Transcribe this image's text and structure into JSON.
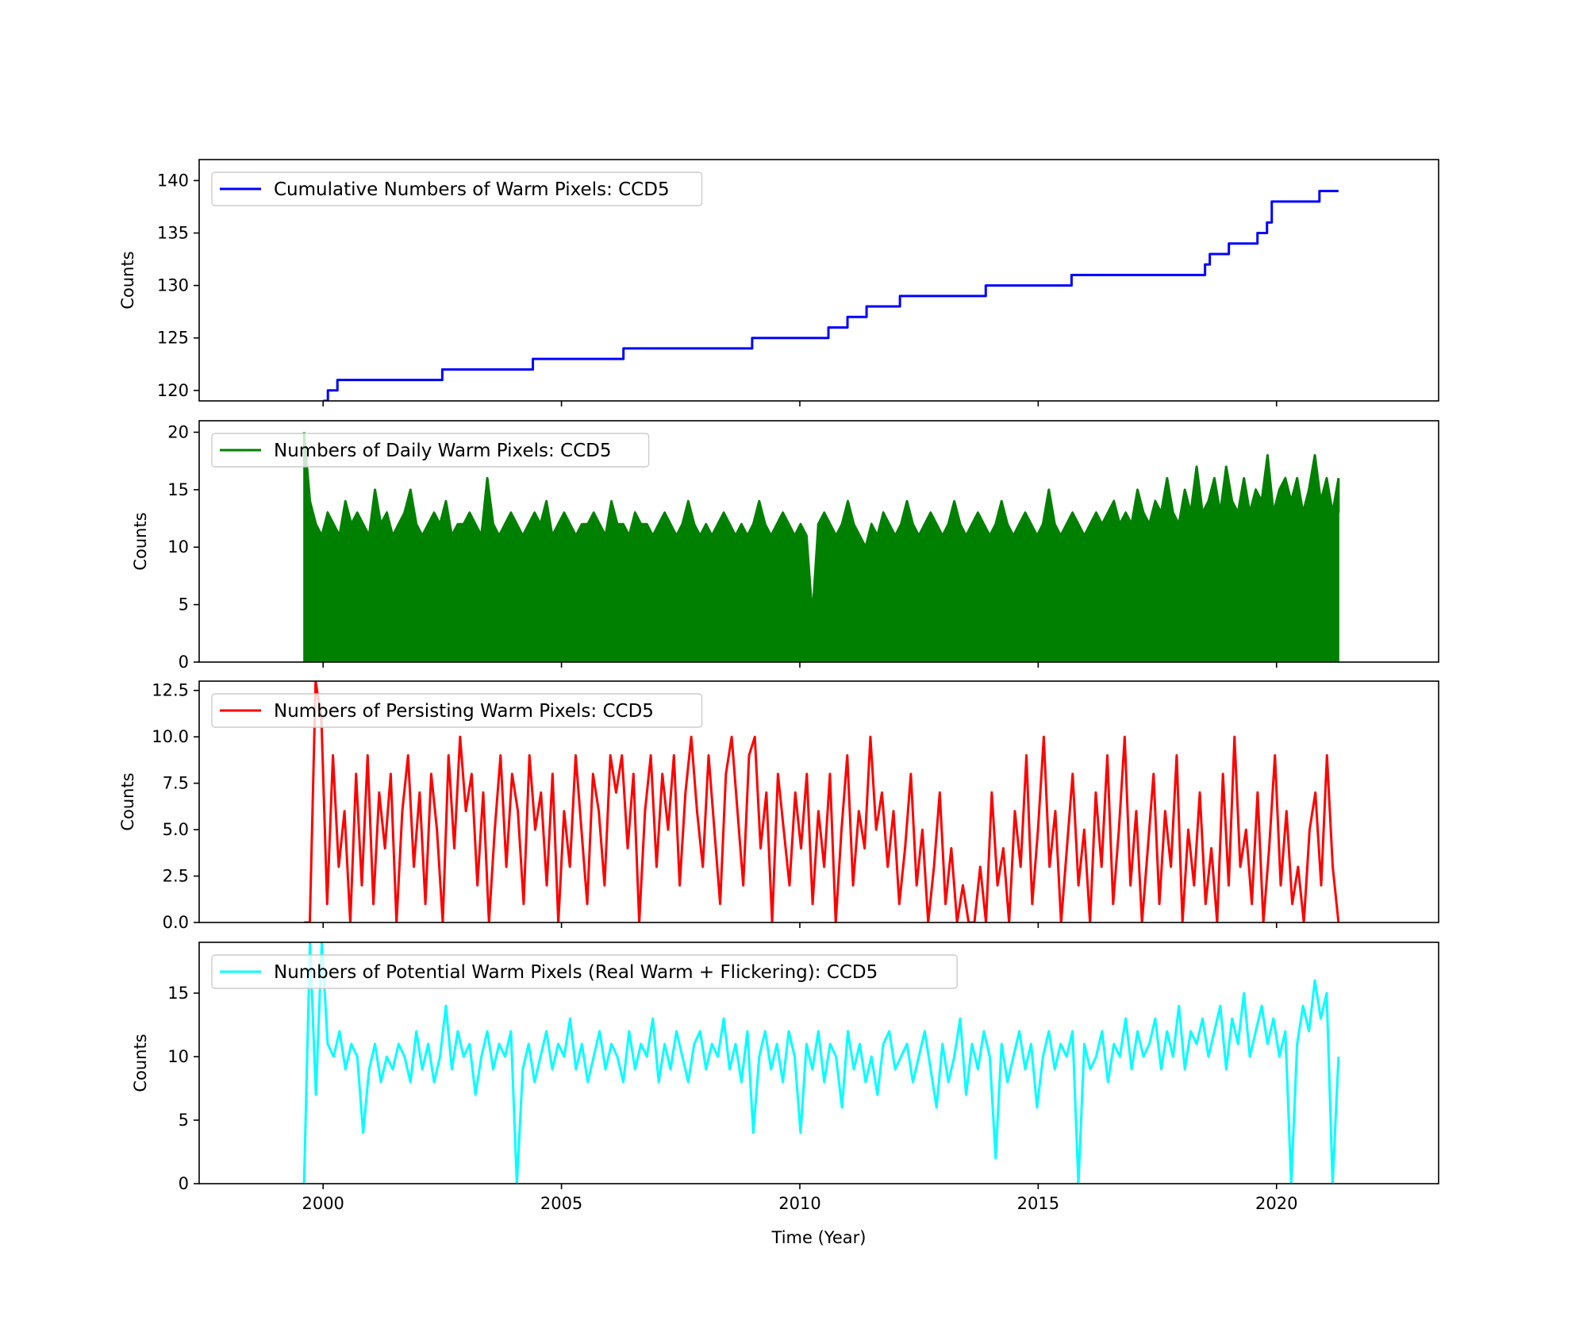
{
  "figure": {
    "xlabel": "Time (Year)",
    "x_ticks": [
      2000,
      2005,
      2010,
      2015,
      2020
    ],
    "xlim": [
      1997.4,
      2023.4
    ]
  },
  "chart_data": [
    {
      "type": "line",
      "drawstyle": "steps",
      "legend_label": "Cumulative Numbers of Warm Pixels: CCD5",
      "legend_placement": "upper-left",
      "ylabel": "Counts",
      "ylim": [
        119,
        142
      ],
      "y_ticks": [
        120,
        125,
        130,
        135,
        140
      ],
      "y_tick_labels": [
        "120",
        "125",
        "130",
        "135",
        "140"
      ],
      "color": "#0000ff",
      "x": [
        2000.0,
        2000.1,
        2000.3,
        2002.5,
        2004.4,
        2006.3,
        2009.0,
        2010.6,
        2011.0,
        2011.4,
        2012.1,
        2013.9,
        2015.7,
        2018.5,
        2018.6,
        2019.0,
        2019.6,
        2019.8,
        2019.9,
        2020.9,
        2021.3
      ],
      "y": [
        119,
        120,
        121,
        122,
        123,
        124,
        125,
        126,
        127,
        128,
        129,
        130,
        131,
        132,
        133,
        134,
        135,
        136,
        138,
        139,
        139
      ]
    },
    {
      "type": "line",
      "drawstyle": "dense",
      "legend_label": "Numbers of Daily Warm Pixels: CCD5",
      "legend_placement": "upper-left",
      "ylabel": "Counts",
      "ylim": [
        0,
        21
      ],
      "y_ticks": [
        0,
        5,
        10,
        15,
        20
      ],
      "y_tick_labels": [
        "0",
        "5",
        "10",
        "15",
        "20"
      ],
      "color": "#008000",
      "x_range": [
        1999.6,
        2021.3
      ],
      "y": [
        20,
        14,
        12,
        11,
        13,
        12,
        11,
        14,
        12,
        13,
        12,
        11,
        15,
        12,
        13,
        11,
        12,
        13,
        15,
        12,
        11,
        12,
        13,
        12,
        14,
        11,
        12,
        12,
        13,
        12,
        11,
        16,
        12,
        11,
        12,
        13,
        12,
        11,
        12,
        13,
        12,
        14,
        11,
        12,
        13,
        12,
        11,
        12,
        12,
        13,
        12,
        11,
        14,
        12,
        12,
        11,
        13,
        12,
        12,
        11,
        12,
        13,
        12,
        11,
        12,
        14,
        12,
        11,
        12,
        11,
        12,
        13,
        12,
        11,
        12,
        11,
        12,
        14,
        12,
        11,
        12,
        13,
        12,
        11,
        12,
        11,
        4,
        12,
        13,
        12,
        11,
        12,
        14,
        12,
        11,
        10,
        12,
        11,
        13,
        12,
        11,
        12,
        14,
        12,
        11,
        12,
        13,
        12,
        11,
        12,
        14,
        12,
        11,
        12,
        13,
        12,
        11,
        12,
        14,
        12,
        11,
        12,
        13,
        12,
        11,
        12,
        15,
        12,
        11,
        12,
        13,
        12,
        11,
        12,
        13,
        12,
        13,
        14,
        12,
        13,
        12,
        15,
        13,
        12,
        14,
        13,
        16,
        13,
        12,
        15,
        13,
        17,
        13,
        14,
        16,
        13,
        17,
        14,
        13,
        16,
        13,
        15,
        14,
        18,
        13,
        15,
        16,
        14,
        16,
        13,
        15,
        18,
        14,
        16,
        13,
        16
      ]
    },
    {
      "type": "line",
      "drawstyle": "dense",
      "legend_label": "Numbers of Persisting Warm Pixels: CCD5",
      "legend_placement": "upper-left",
      "ylabel": "Counts",
      "ylim": [
        0,
        13
      ],
      "y_ticks": [
        0.0,
        2.5,
        5.0,
        7.5,
        10.0,
        12.5
      ],
      "y_tick_labels": [
        "0.0",
        "2.5",
        "5.0",
        "7.5",
        "10.0",
        "12.5"
      ],
      "color": "#ff0000",
      "x_range": [
        1999.6,
        2021.3
      ],
      "y": [
        0,
        0,
        13,
        11,
        1,
        9,
        3,
        6,
        0,
        8,
        2,
        9,
        1,
        7,
        4,
        8,
        0,
        6,
        9,
        3,
        7,
        1,
        8,
        5,
        0,
        9,
        4,
        10,
        6,
        8,
        2,
        7,
        0,
        5,
        9,
        3,
        8,
        6,
        1,
        9,
        5,
        7,
        2,
        8,
        0,
        6,
        3,
        9,
        5,
        1,
        8,
        6,
        2,
        9,
        7,
        9,
        4,
        8,
        0,
        6,
        9,
        3,
        8,
        5,
        9,
        2,
        7,
        10,
        6,
        3,
        9,
        5,
        1,
        8,
        10,
        6,
        2,
        9,
        10,
        4,
        7,
        0,
        8,
        5,
        2,
        7,
        4,
        8,
        1,
        6,
        3,
        8,
        0,
        5,
        9,
        2,
        6,
        4,
        10,
        5,
        7,
        3,
        6,
        1,
        4,
        8,
        2,
        5,
        0,
        3,
        7,
        1,
        4,
        0,
        2,
        0,
        0,
        3,
        0,
        7,
        2,
        4,
        0,
        6,
        3,
        9,
        1,
        5,
        10,
        3,
        6,
        0,
        4,
        8,
        2,
        5,
        0,
        7,
        3,
        9,
        1,
        5,
        10,
        2,
        6,
        0,
        4,
        8,
        1,
        6,
        3,
        9,
        0,
        5,
        2,
        7,
        1,
        4,
        0,
        8,
        2,
        10,
        3,
        5,
        1,
        7,
        0,
        4,
        9,
        2,
        6,
        1,
        3,
        0,
        5,
        7,
        2,
        9,
        3,
        0
      ]
    },
    {
      "type": "line",
      "drawstyle": "dense",
      "legend_label": "Numbers of Potential Warm Pixels (Real Warm + Flickering): CCD5",
      "legend_placement": "upper-left",
      "ylabel": "Counts",
      "ylim": [
        0,
        19
      ],
      "y_ticks": [
        0,
        5,
        10,
        15
      ],
      "y_tick_labels": [
        "0",
        "5",
        "10",
        "15"
      ],
      "color": "#00ffff",
      "x_range": [
        1999.6,
        2021.3
      ],
      "y": [
        0,
        19,
        7,
        19,
        11,
        10,
        12,
        9,
        11,
        10,
        4,
        9,
        11,
        8,
        10,
        9,
        11,
        10,
        8,
        12,
        9,
        11,
        8,
        10,
        14,
        9,
        12,
        10,
        11,
        7,
        10,
        12,
        9,
        11,
        10,
        12,
        0,
        9,
        11,
        8,
        10,
        12,
        9,
        11,
        10,
        13,
        9,
        11,
        8,
        10,
        12,
        9,
        11,
        10,
        8,
        12,
        9,
        11,
        10,
        13,
        8,
        11,
        9,
        12,
        10,
        8,
        11,
        12,
        9,
        11,
        10,
        13,
        9,
        11,
        8,
        12,
        4,
        10,
        12,
        9,
        11,
        8,
        12,
        10,
        4,
        11,
        9,
        12,
        8,
        11,
        10,
        6,
        12,
        9,
        11,
        8,
        10,
        7,
        11,
        12,
        9,
        10,
        11,
        8,
        10,
        12,
        9,
        6,
        11,
        8,
        10,
        13,
        7,
        11,
        9,
        12,
        10,
        2,
        11,
        8,
        10,
        12,
        9,
        11,
        6,
        10,
        12,
        9,
        11,
        10,
        12,
        0,
        11,
        9,
        10,
        12,
        8,
        11,
        10,
        13,
        9,
        12,
        10,
        11,
        13,
        9,
        12,
        10,
        14,
        9,
        12,
        11,
        13,
        10,
        12,
        14,
        9,
        13,
        11,
        15,
        10,
        12,
        14,
        11,
        13,
        10,
        12,
        0,
        11,
        14,
        12,
        16,
        13,
        15,
        0,
        10
      ]
    }
  ]
}
